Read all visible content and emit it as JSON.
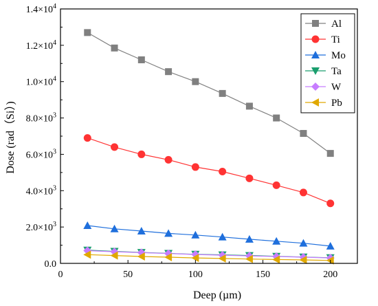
{
  "chart_data": {
    "type": "line",
    "xlabel": "Deep (µm)",
    "ylabel": "Dose (rad（Si）)",
    "xlim": [
      0,
      220
    ],
    "ylim": [
      0,
      14000
    ],
    "xticks": [
      0,
      50,
      100,
      150,
      200
    ],
    "xtick_labels": [
      "0",
      "50",
      "100",
      "150",
      "200"
    ],
    "yticks": [
      0,
      2000,
      4000,
      6000,
      8000,
      10000,
      12000,
      14000
    ],
    "ytick_labels": [
      {
        "base": "0.0",
        "exp": ""
      },
      {
        "base": "2.0×10",
        "exp": "3"
      },
      {
        "base": "4.0×10",
        "exp": "3"
      },
      {
        "base": "6.0×10",
        "exp": "3"
      },
      {
        "base": "8.0×10",
        "exp": "3"
      },
      {
        "base": "1.0×10",
        "exp": "4"
      },
      {
        "base": "1.2×10",
        "exp": "4"
      },
      {
        "base": "1.4×10",
        "exp": "4"
      }
    ],
    "grid": false,
    "legend_position": "top-right",
    "x": [
      20,
      40,
      60,
      80,
      100,
      120,
      140,
      160,
      180,
      200
    ],
    "series": [
      {
        "name": "Al",
        "color": "#808080",
        "marker": "square",
        "values": [
          12700,
          11850,
          11200,
          10550,
          10000,
          9350,
          8650,
          8000,
          7150,
          6050
        ]
      },
      {
        "name": "Ti",
        "color": "#ff3333",
        "marker": "circle",
        "values": [
          6900,
          6400,
          6000,
          5700,
          5300,
          5050,
          4680,
          4300,
          3900,
          3300
        ]
      },
      {
        "name": "Mo",
        "color": "#1f6fdc",
        "marker": "triangle-up",
        "values": [
          2080,
          1900,
          1780,
          1650,
          1560,
          1450,
          1330,
          1220,
          1110,
          950
        ]
      },
      {
        "name": "Ta",
        "color": "#1a9e6e",
        "marker": "triangle-down",
        "values": [
          730,
          660,
          600,
          550,
          500,
          470,
          430,
          390,
          350,
          310
        ]
      },
      {
        "name": "W",
        "color": "#c77dff",
        "marker": "diamond",
        "values": [
          700,
          640,
          590,
          540,
          490,
          450,
          410,
          380,
          340,
          300
        ]
      },
      {
        "name": "Pb",
        "color": "#e0a800",
        "marker": "triangle-left",
        "values": [
          480,
          430,
          380,
          340,
          300,
          270,
          240,
          210,
          190,
          160
        ]
      }
    ]
  }
}
